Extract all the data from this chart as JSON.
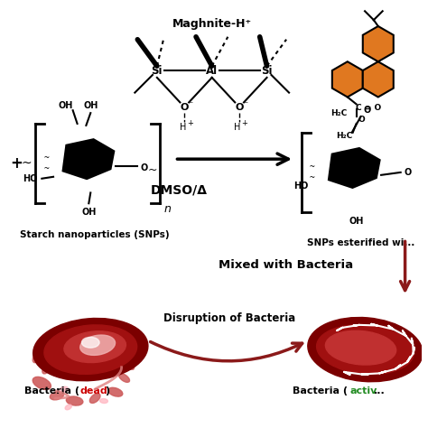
{
  "bg_color": "#ffffff",
  "text_maghnite": "Maghnite-H⁺",
  "text_dmso": "DMSO/Δ",
  "text_snp": "Starch nanoparticles (SNPs)",
  "text_snp_ester": "SNPs esterified wi...",
  "text_mixed": "Mixed with Bacteria",
  "text_disruption": "Disruption of Bacteria",
  "text_dead": "Bacteria (dead)",
  "text_active": "Bacteria (activ...",
  "orange_hex": "#E07820",
  "dark_red": "#8B1A1A",
  "medium_red": "#B22222",
  "light_red": "#CD5C5C",
  "pink_light": "#FFB6C1",
  "black": "#000000",
  "green_color": "#228B22",
  "red_color": "#CC0000"
}
